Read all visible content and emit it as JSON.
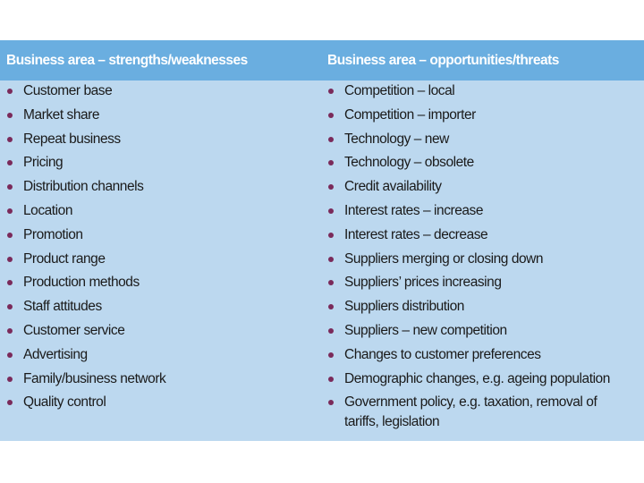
{
  "columns": [
    {
      "heading": "Business area – strengths/weaknesses",
      "items": [
        "Customer base",
        "Market share",
        "Repeat business",
        "Pricing",
        "Distribution channels",
        "Location",
        "Promotion",
        "Product range",
        "Production methods",
        "Staff attitudes",
        "Customer service",
        "Advertising",
        "Family/business network",
        "Quality control"
      ]
    },
    {
      "heading": "Business area – opportunities/threats",
      "items": [
        "Competition – local",
        "Competition – importer",
        "Technology – new",
        "Technology – obsolete",
        "Credit availability",
        "Interest rates – increase",
        "Interest rates – decrease",
        "Suppliers merging or closing down",
        "Suppliers’ prices increasing",
        "Suppliers distribution",
        "Suppliers – new competition",
        "Changes to customer preferences",
        "Demographic changes, e.g. ageing population",
        "Government policy, e.g. taxation, removal of tariffs, legislation"
      ]
    }
  ]
}
